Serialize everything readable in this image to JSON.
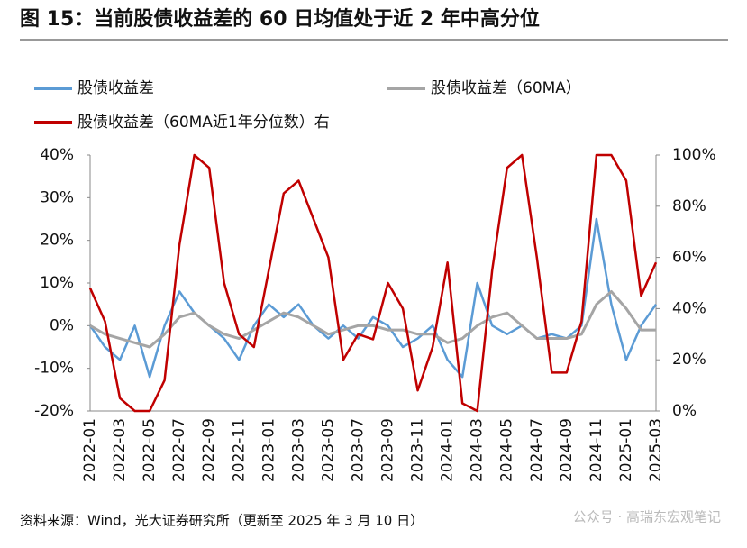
{
  "chart_data": {
    "type": "line",
    "title": "图 15：当前股债收益差的 60 日均值处于近 2 年中高分位",
    "source": "资料来源：Wind，光大证券研究所（更新至 2025 年 3 月 10 日）",
    "watermark": "公众号 · 高瑞东宏观笔记",
    "categories": [
      "2022-01",
      null,
      "2022-03",
      null,
      "2022-05",
      null,
      "2022-07",
      null,
      "2022-09",
      null,
      "2022-11",
      null,
      "2023-01",
      null,
      "2023-03",
      null,
      "2023-05",
      null,
      "2023-07",
      null,
      "2023-09",
      null,
      "2023-11",
      null,
      "2024-01",
      null,
      "2024-03",
      null,
      "2024-05",
      null,
      "2024-07",
      null,
      "2024-09",
      null,
      "2024-11",
      null,
      "2025-01",
      null,
      "2025-03"
    ],
    "series": [
      {
        "name": "股债收益差",
        "color": "#5b9bd5",
        "values": [
          0,
          -5,
          -8,
          0,
          -12,
          0,
          8,
          3,
          0,
          -3,
          -8,
          0,
          5,
          2,
          5,
          0,
          -3,
          0,
          -3,
          2,
          0,
          -5,
          -3,
          0,
          -8,
          -12,
          10,
          0,
          -2,
          0,
          -3,
          -2,
          -3,
          0,
          25,
          5,
          -8,
          0,
          5
        ]
      },
      {
        "name": "股债收益差（60MA）",
        "color": "#a5a5a5",
        "values": [
          0,
          -2,
          -3,
          -4,
          -5,
          -2,
          2,
          3,
          0,
          -2,
          -3,
          -1,
          1,
          3,
          2,
          0,
          -2,
          -1,
          0,
          0,
          -1,
          -1,
          -2,
          -2,
          -4,
          -3,
          0,
          2,
          3,
          0,
          -3,
          -3,
          -3,
          -2,
          5,
          8,
          4,
          -1,
          -1
        ]
      },
      {
        "name": "股债收益差（60MA近1年分位数）右",
        "color": "#c00000",
        "axis": "y2",
        "values": [
          48,
          35,
          5,
          0,
          0,
          12,
          65,
          100,
          95,
          50,
          30,
          25,
          55,
          85,
          90,
          75,
          60,
          20,
          30,
          28,
          50,
          40,
          8,
          25,
          58,
          3,
          0,
          55,
          95,
          100,
          60,
          15,
          15,
          35,
          100,
          100,
          90,
          45,
          58
        ]
      }
    ],
    "ylim": [
      -20,
      40
    ],
    "yticks": [
      {
        "value": -20,
        "label": "-20%"
      },
      {
        "value": -10,
        "label": "-10%"
      },
      {
        "value": 0,
        "label": "0%"
      },
      {
        "value": 10,
        "label": "10%"
      },
      {
        "value": 20,
        "label": "20%"
      },
      {
        "value": 30,
        "label": "30%"
      },
      {
        "value": 40,
        "label": "40%"
      }
    ],
    "y2lim": [
      0,
      100
    ],
    "y2ticks": [
      {
        "value": 0,
        "label": "0%"
      },
      {
        "value": 20,
        "label": "20%"
      },
      {
        "value": 40,
        "label": "40%"
      },
      {
        "value": 60,
        "label": "60%"
      },
      {
        "value": 80,
        "label": "80%"
      },
      {
        "value": 100,
        "label": "100%"
      }
    ],
    "grid": false
  }
}
